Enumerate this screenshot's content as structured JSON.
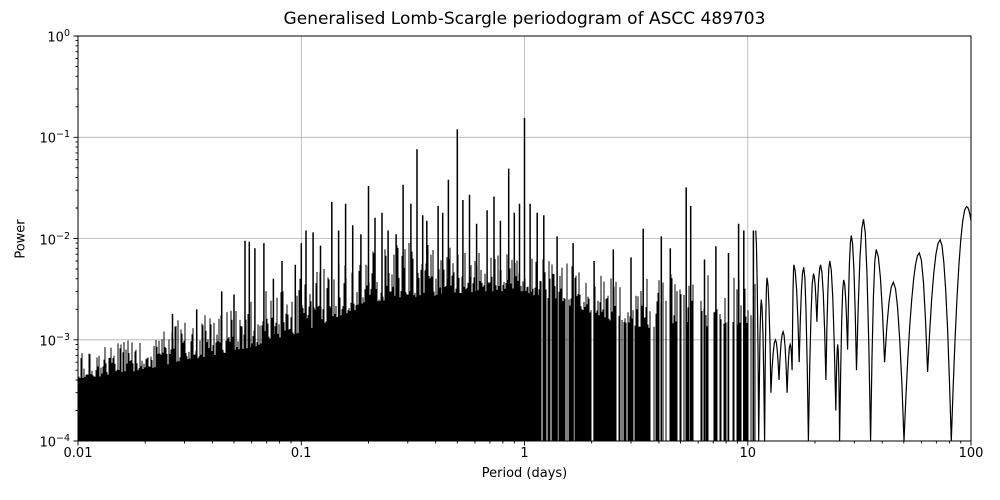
{
  "figure": {
    "background": "#ffffff",
    "text_color": "#000000"
  },
  "chart_data": {
    "type": "line",
    "title": "Generalised Lomb-Scargle periodogram of ASCC 489703",
    "xlabel": "Period (days)",
    "ylabel": "Power",
    "xscale": "log",
    "yscale": "log",
    "xlim": [
      0.01,
      100
    ],
    "ylim": [
      0.0001,
      1
    ],
    "grid": true,
    "legend": "none",
    "line_color": "#000000",
    "grid_color": "#b0b0b0",
    "spine_color": "#000000",
    "x_ticks": [
      {
        "value": 0.01,
        "label": "0.01"
      },
      {
        "value": 0.1,
        "label": "0.1"
      },
      {
        "value": 1,
        "label": "1"
      },
      {
        "value": 10,
        "label": "10"
      },
      {
        "value": 100,
        "label": "100"
      }
    ],
    "y_ticks": [
      {
        "value": 1,
        "base": "10",
        "exp": "0"
      },
      {
        "value": 0.1,
        "base": "10",
        "exp": "−1"
      },
      {
        "value": 0.01,
        "base": "10",
        "exp": "−2"
      },
      {
        "value": 0.001,
        "base": "10",
        "exp": "−3"
      },
      {
        "value": 0.0001,
        "base": "10",
        "exp": "−4"
      }
    ],
    "highest_peak": {
      "period": 1.0,
      "power": 0.155
    },
    "noise_envelope": [
      [
        0.01,
        0.0004,
        0.00075
      ],
      [
        0.014,
        0.00045,
        0.0009
      ],
      [
        0.02,
        0.0005,
        0.0011
      ],
      [
        0.028,
        0.0006,
        0.0016
      ],
      [
        0.04,
        0.0007,
        0.002
      ],
      [
        0.056,
        0.0008,
        0.0026
      ],
      [
        0.079,
        0.001,
        0.0035
      ],
      [
        0.112,
        0.0013,
        0.0045
      ],
      [
        0.158,
        0.0018,
        0.0065
      ],
      [
        0.224,
        0.0024,
        0.008
      ],
      [
        0.316,
        0.0026,
        0.0095
      ],
      [
        0.447,
        0.0028,
        0.0085
      ],
      [
        0.631,
        0.003,
        0.0075
      ],
      [
        0.891,
        0.003,
        0.0075
      ],
      [
        1.259,
        0.0026,
        0.0065
      ],
      [
        1.778,
        0.002,
        0.0055
      ],
      [
        2.512,
        0.0015,
        0.0045
      ],
      [
        3.548,
        0.0013,
        0.0045
      ],
      [
        5.012,
        0.0015,
        0.005
      ],
      [
        7.079,
        0.0013,
        0.0045
      ],
      [
        10.85,
        0.0015,
        0.006
      ]
    ],
    "texture_zones": [
      {
        "from": 0.01,
        "to": 1.05,
        "coverage": 1.0
      },
      {
        "from": 1.05,
        "to": 2.0,
        "coverage": 0.9
      },
      {
        "from": 2.0,
        "to": 3.5,
        "coverage": 0.78
      },
      {
        "from": 3.5,
        "to": 6.0,
        "coverage": 0.6
      },
      {
        "from": 6.0,
        "to": 10.85,
        "coverage": 0.5
      }
    ],
    "peaks": [
      [
        0.0265,
        0.0018
      ],
      [
        0.034,
        0.002
      ],
      [
        0.044,
        0.003
      ],
      [
        0.05,
        0.0028
      ],
      [
        0.056,
        0.0095
      ],
      [
        0.0585,
        0.0093
      ],
      [
        0.062,
        0.008
      ],
      [
        0.068,
        0.009
      ],
      [
        0.075,
        0.004
      ],
      [
        0.082,
        0.006
      ],
      [
        0.094,
        0.0055
      ],
      [
        0.1,
        0.009
      ],
      [
        0.105,
        0.012
      ],
      [
        0.113,
        0.0115
      ],
      [
        0.122,
        0.0085
      ],
      [
        0.137,
        0.023
      ],
      [
        0.147,
        0.012
      ],
      [
        0.158,
        0.022
      ],
      [
        0.17,
        0.0135
      ],
      [
        0.185,
        0.011
      ],
      [
        0.2,
        0.033
      ],
      [
        0.214,
        0.016
      ],
      [
        0.23,
        0.018
      ],
      [
        0.245,
        0.012
      ],
      [
        0.266,
        0.011
      ],
      [
        0.286,
        0.034
      ],
      [
        0.31,
        0.022
      ],
      [
        0.33,
        0.076
      ],
      [
        0.35,
        0.017
      ],
      [
        0.365,
        0.015
      ],
      [
        0.41,
        0.021
      ],
      [
        0.43,
        0.018
      ],
      [
        0.456,
        0.038
      ],
      [
        0.5,
        0.12
      ],
      [
        0.53,
        0.024
      ],
      [
        0.567,
        0.027
      ],
      [
        0.61,
        0.014
      ],
      [
        0.68,
        0.019
      ],
      [
        0.73,
        0.026
      ],
      [
        0.78,
        0.015
      ],
      [
        0.85,
        0.049
      ],
      [
        0.9,
        0.018
      ],
      [
        0.95,
        0.022
      ],
      [
        1.0,
        0.155
      ],
      [
        1.06,
        0.022
      ],
      [
        1.14,
        0.018
      ],
      [
        1.22,
        0.017
      ],
      [
        1.4,
        0.0105
      ],
      [
        1.65,
        0.009
      ],
      [
        2.05,
        0.006
      ],
      [
        2.5,
        0.0078
      ],
      [
        3.0,
        0.0065
      ],
      [
        3.4,
        0.0125
      ],
      [
        4.1,
        0.0105
      ],
      [
        4.5,
        0.008
      ],
      [
        5.3,
        0.032
      ],
      [
        5.55,
        0.021
      ],
      [
        6.4,
        0.0062
      ],
      [
        7.2,
        0.0084
      ],
      [
        8.2,
        0.0072
      ],
      [
        9.1,
        0.014
      ],
      [
        9.6,
        0.012
      ],
      [
        10.6,
        0.012
      ]
    ],
    "lobes": [
      [
        10.85,
        0.012,
        "c"
      ],
      [
        11.2,
        0.0001,
        "n"
      ],
      [
        11.5,
        0.0025,
        "c"
      ],
      [
        11.9,
        0.0001,
        "n"
      ],
      [
        12.2,
        0.0041,
        "c"
      ],
      [
        12.7,
        0.0003,
        "n"
      ],
      [
        13.3,
        0.001,
        "c"
      ],
      [
        13.8,
        0.0004,
        "n"
      ],
      [
        14.4,
        0.0012,
        "c"
      ],
      [
        15.0,
        0.0003,
        "n"
      ],
      [
        15.5,
        0.0009,
        "c"
      ],
      [
        15.8,
        0.0005,
        "n"
      ],
      [
        16.1,
        0.0055,
        "c"
      ],
      [
        17.0,
        0.0006,
        "n"
      ],
      [
        17.8,
        0.0052,
        "c"
      ],
      [
        18.7,
        0.0001,
        "n"
      ],
      [
        19.7,
        0.0045,
        "c"
      ],
      [
        20.4,
        0.0015,
        "n"
      ],
      [
        21.2,
        0.0055,
        "c"
      ],
      [
        22.4,
        0.0004,
        "n"
      ],
      [
        23.3,
        0.006,
        "c"
      ],
      [
        24.8,
        0.0002,
        "n"
      ],
      [
        25.3,
        0.0009,
        "c"
      ],
      [
        25.8,
        0.0001,
        "n"
      ],
      [
        26.9,
        0.0039,
        "c"
      ],
      [
        28.0,
        0.0008,
        "n"
      ],
      [
        29.1,
        0.0107,
        "c"
      ],
      [
        30.7,
        0.0005,
        "n"
      ],
      [
        33.0,
        0.0155,
        "c"
      ],
      [
        35.5,
        0.0001,
        "n"
      ],
      [
        37.6,
        0.0078,
        "c"
      ],
      [
        41.0,
        0.0006,
        "n"
      ],
      [
        44.9,
        0.0037,
        "c"
      ],
      [
        50.1,
        0.0001,
        "n"
      ],
      [
        58.7,
        0.0072,
        "c"
      ],
      [
        63.9,
        0.00048,
        "n"
      ],
      [
        72.7,
        0.0097,
        "c"
      ],
      [
        81.6,
        0.0001,
        "n"
      ],
      [
        95.5,
        0.0207,
        "c"
      ],
      [
        100.0,
        0.015,
        "n"
      ]
    ]
  }
}
